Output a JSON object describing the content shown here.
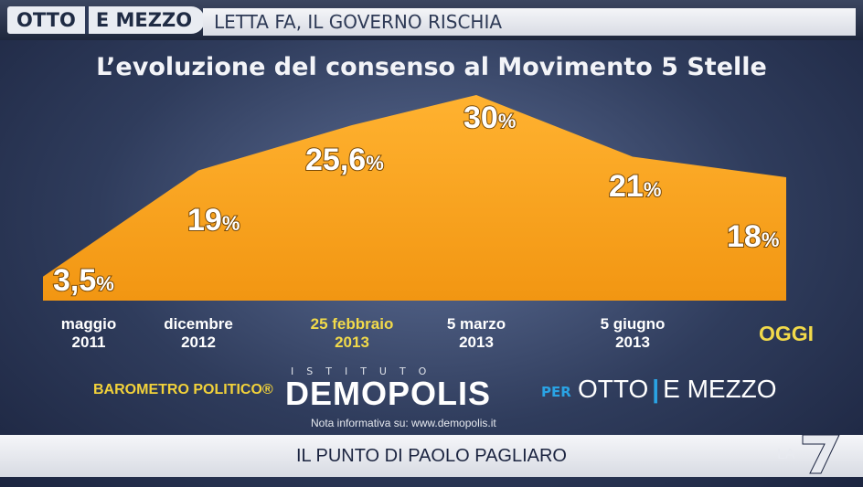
{
  "header": {
    "logo_part1": "OTTO",
    "logo_part2": "E MEZZO",
    "headline": "LETTA FA, IL GOVERNO RISCHIA"
  },
  "chart_data": {
    "type": "area",
    "title": "L’evoluzione del consenso al Movimento 5 Stelle",
    "categories": [
      {
        "line1": "maggio",
        "line2": "2011"
      },
      {
        "line1": "dicembre",
        "line2": "2012"
      },
      {
        "line1": "25 febbraio",
        "line2": "2013"
      },
      {
        "line1": "5 marzo",
        "line2": "2013"
      },
      {
        "line1": "5 giugno",
        "line2": "2013"
      },
      {
        "line1": "OGGI",
        "line2": ""
      }
    ],
    "values": [
      3.5,
      19,
      25.6,
      30,
      21,
      18
    ],
    "value_labels": [
      "3,5",
      "19",
      "25,6",
      "30",
      "21",
      "18"
    ],
    "unit": "%",
    "ylim": [
      0,
      30
    ],
    "fill_color": "#f9a21e",
    "highlight_color": "#f2da4a"
  },
  "branding": {
    "barometro": "BAROMETRO POLITICO®",
    "istituto": "ISTITUTO",
    "demopolis": "DEMOPOLIS",
    "per": "PER",
    "om_part1": "OTTO",
    "om_part2": "E MEZZO",
    "nota": "Nota informativa su: www.demopolis.it"
  },
  "footer": {
    "text": "IL PUNTO DI PAOLO PAGLIARO",
    "channel": "LA 7"
  }
}
